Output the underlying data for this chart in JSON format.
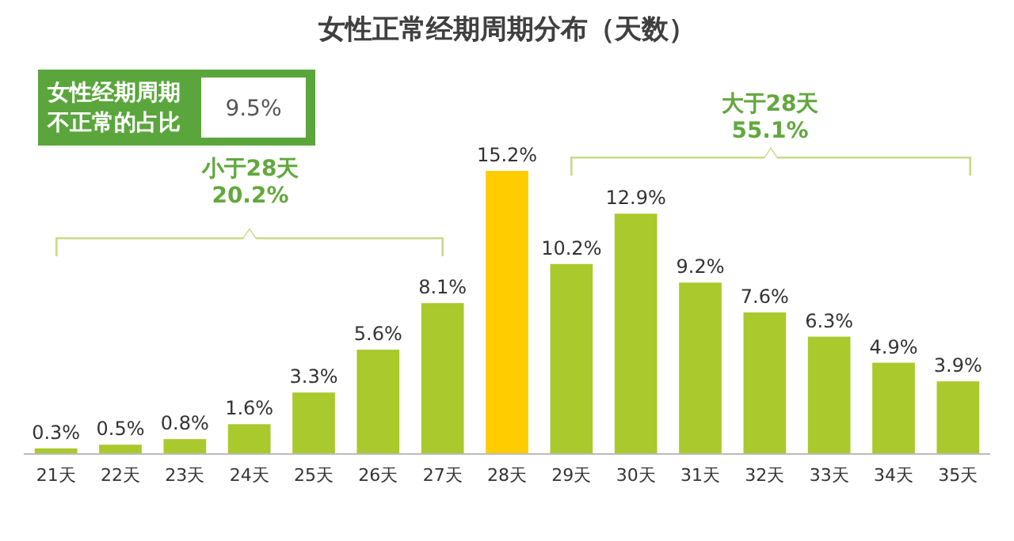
{
  "chart_data": {
    "type": "bar",
    "title": "女性正常经期周期分布（天数）",
    "categories": [
      "21天",
      "22天",
      "23天",
      "24天",
      "25天",
      "26天",
      "27天",
      "28天",
      "29天",
      "30天",
      "31天",
      "32天",
      "33天",
      "34天",
      "35天"
    ],
    "values": [
      0.3,
      0.5,
      0.8,
      1.6,
      3.3,
      5.6,
      8.1,
      15.2,
      10.2,
      12.9,
      9.2,
      7.6,
      6.3,
      4.9,
      3.9
    ],
    "value_labels": [
      "0.3%",
      "0.5%",
      "0.8%",
      "1.6%",
      "3.3%",
      "5.6%",
      "8.1%",
      "15.2%",
      "10.2%",
      "12.9%",
      "9.2%",
      "7.6%",
      "6.3%",
      "4.9%",
      "3.9%"
    ],
    "colors": [
      "#a9c92c",
      "#a9c92c",
      "#a9c92c",
      "#a9c92c",
      "#a9c92c",
      "#a9c92c",
      "#a9c92c",
      "#ffcc00",
      "#a9c92c",
      "#a9c92c",
      "#a9c92c",
      "#a9c92c",
      "#a9c92c",
      "#a9c92c",
      "#a9c92c"
    ],
    "annotations": [
      "女性经期周期",
      "不正常的占比",
      "9.5%",
      "小于28天",
      "20.2%",
      "大于28天",
      "55.1%"
    ]
  }
}
